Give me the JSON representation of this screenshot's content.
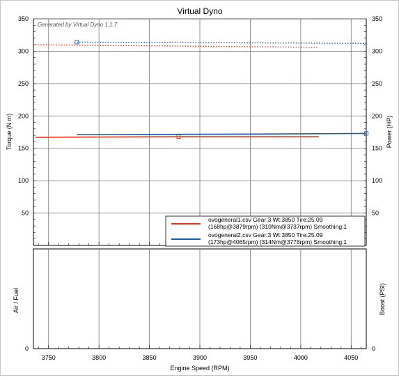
{
  "chart_data": {
    "title": "Virtual Dyno",
    "watermark": "Generated by Virtual Dyno 1.1.7",
    "xlabel": "Engine Speed (RPM)",
    "xlim": [
      3735,
      4065
    ],
    "x_ticks": [
      3750,
      3800,
      3850,
      3900,
      3950,
      4000,
      4050
    ],
    "top_panel": {
      "type": "line",
      "ylabel_left": "Torque (N m)",
      "ylabel_right": "Power (HP)",
      "ylim": [
        0,
        350
      ],
      "y_ticks": [
        50,
        100,
        150,
        200,
        250,
        300,
        350
      ],
      "grid": true,
      "legend_position": "bottom-right",
      "series": [
        {
          "name": "ovogeneral1.csv Gear:3 Wt:3850 Tire:25.09",
          "detail": "(168hp@3879rpm) (310Nm@3737rpm) Smoothing:1",
          "color": "#e8341c",
          "power_hp": {
            "x": [
              3737,
              3800,
              3879,
              3950,
              4018
            ],
            "y": [
              167,
              167.5,
              168,
              168,
              168
            ]
          },
          "torque_nm": {
            "x": [
              3737,
              3800,
              3879,
              3950,
              4018
            ],
            "y": [
              310,
              309,
              308,
              307,
              306
            ]
          },
          "peak_marker": {
            "x": 3879,
            "y": 168
          }
        },
        {
          "name": "ovogeneral2.csv Gear:3 Wt:3850 Tire:25.09",
          "detail": "(173hp@4065rpm) (314Nm@3778rpm) Smoothing:1",
          "color": "#1a5ca8",
          "power_hp": {
            "x": [
              3778,
              3850,
              3950,
              4065
            ],
            "y": [
              171,
              171.5,
              172,
              173
            ]
          },
          "torque_nm": {
            "x": [
              3778,
              3850,
              3950,
              4065
            ],
            "y": [
              314,
              313.5,
              313,
              312
            ]
          },
          "peak_marker": {
            "x": 4065,
            "y": 173
          },
          "torque_marker": {
            "x": 3778,
            "y": 314
          }
        }
      ]
    },
    "bottom_panel": {
      "type": "line",
      "ylabel_left": "Air / Fuel",
      "ylabel_right": "Boost (PSI)",
      "y_tick_left": "0",
      "y_tick_right": "0",
      "series": []
    }
  }
}
